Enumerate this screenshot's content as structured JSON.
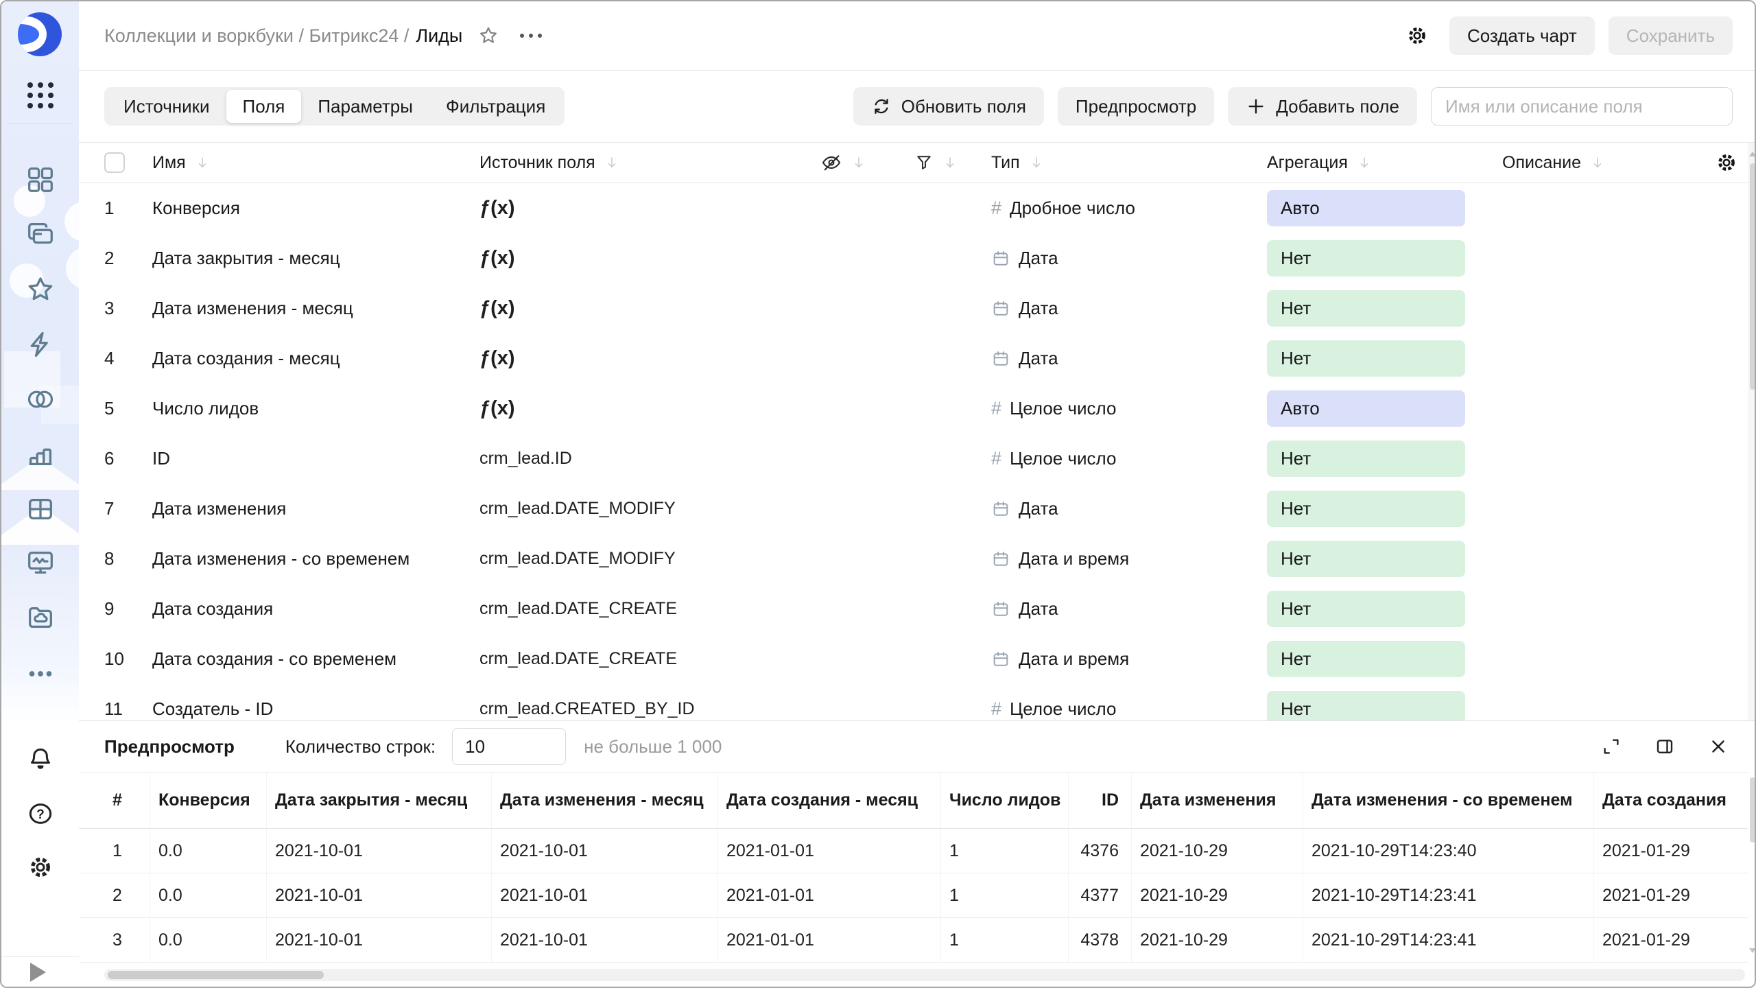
{
  "breadcrumb": {
    "path": "Коллекции и воркбуки / Битрикс24 /",
    "current": "Лиды"
  },
  "header": {
    "create_chart": "Создать чарт",
    "save": "Сохранить"
  },
  "toolbar": {
    "tabs": [
      "Источники",
      "Поля",
      "Параметры",
      "Фильтрация"
    ],
    "active_tab": "Поля",
    "refresh_fields": "Обновить поля",
    "preview": "Предпросмотр",
    "add_field": "Добавить поле",
    "search_placeholder": "Имя или описание поля"
  },
  "fields_table": {
    "headers": {
      "name": "Имя",
      "source": "Источник поля",
      "type": "Тип",
      "aggregation": "Агрегация",
      "description": "Описание"
    },
    "rows": [
      {
        "num": "1",
        "name": "Конверсия",
        "source": "ƒ(x)",
        "source_kind": "formula",
        "type": "Дробное число",
        "type_kind": "number",
        "aggregation": "Авто",
        "aggregation_kind": "auto"
      },
      {
        "num": "2",
        "name": "Дата закрытия - месяц",
        "source": "ƒ(x)",
        "source_kind": "formula",
        "type": "Дата",
        "type_kind": "date",
        "aggregation": "Нет",
        "aggregation_kind": "none"
      },
      {
        "num": "3",
        "name": "Дата изменения - месяц",
        "source": "ƒ(x)",
        "source_kind": "formula",
        "type": "Дата",
        "type_kind": "date",
        "aggregation": "Нет",
        "aggregation_kind": "none"
      },
      {
        "num": "4",
        "name": "Дата создания - месяц",
        "source": "ƒ(x)",
        "source_kind": "formula",
        "type": "Дата",
        "type_kind": "date",
        "aggregation": "Нет",
        "aggregation_kind": "none"
      },
      {
        "num": "5",
        "name": "Число лидов",
        "source": "ƒ(x)",
        "source_kind": "formula",
        "type": "Целое число",
        "type_kind": "number",
        "aggregation": "Авто",
        "aggregation_kind": "auto"
      },
      {
        "num": "6",
        "name": "ID",
        "source": "crm_lead.ID",
        "source_kind": "column",
        "type": "Целое число",
        "type_kind": "number",
        "aggregation": "Нет",
        "aggregation_kind": "none"
      },
      {
        "num": "7",
        "name": "Дата изменения",
        "source": "crm_lead.DATE_MODIFY",
        "source_kind": "column",
        "type": "Дата",
        "type_kind": "date",
        "aggregation": "Нет",
        "aggregation_kind": "none"
      },
      {
        "num": "8",
        "name": "Дата изменения - со временем",
        "source": "crm_lead.DATE_MODIFY",
        "source_kind": "column",
        "type": "Дата и время",
        "type_kind": "date",
        "aggregation": "Нет",
        "aggregation_kind": "none"
      },
      {
        "num": "9",
        "name": "Дата создания",
        "source": "crm_lead.DATE_CREATE",
        "source_kind": "column",
        "type": "Дата",
        "type_kind": "date",
        "aggregation": "Нет",
        "aggregation_kind": "none"
      },
      {
        "num": "10",
        "name": "Дата создания - со временем",
        "source": "crm_lead.DATE_CREATE",
        "source_kind": "column",
        "type": "Дата и время",
        "type_kind": "date",
        "aggregation": "Нет",
        "aggregation_kind": "none"
      },
      {
        "num": "11",
        "name": "Создатель - ID",
        "source": "crm_lead.CREATED_BY_ID",
        "source_kind": "column",
        "type": "Целое число",
        "type_kind": "number",
        "aggregation": "Нет",
        "aggregation_kind": "none"
      }
    ]
  },
  "preview": {
    "title": "Предпросмотр",
    "row_count_label": "Количество строк:",
    "row_count_value": "10",
    "limit_hint": "не больше 1 000",
    "columns": [
      "#",
      "Конверсия",
      "Дата закрытия - месяц",
      "Дата изменения - месяц",
      "Дата создания - месяц",
      "Число лидов",
      "ID",
      "Дата изменения",
      "Дата изменения - со временем",
      "Дата создания"
    ],
    "rows": [
      [
        "1",
        "0.0",
        "2021-10-01",
        "2021-10-01",
        "2021-01-01",
        "1",
        "4376",
        "2021-10-29",
        "2021-10-29T14:23:40",
        "2021-01-29"
      ],
      [
        "2",
        "0.0",
        "2021-10-01",
        "2021-10-01",
        "2021-01-01",
        "1",
        "4377",
        "2021-10-29",
        "2021-10-29T14:23:41",
        "2021-01-29"
      ],
      [
        "3",
        "0.0",
        "2021-10-01",
        "2021-10-01",
        "2021-01-01",
        "1",
        "4378",
        "2021-10-29",
        "2021-10-29T14:23:41",
        "2021-01-29"
      ]
    ]
  },
  "icons": {
    "number_type_glyph": "#"
  },
  "colors": {
    "aggregation_auto_bg": "#dbe0fa",
    "aggregation_none_bg": "#d9f2df",
    "sidebar_bg": "#e8edfb",
    "logo_blue": "#3d6cf5"
  }
}
